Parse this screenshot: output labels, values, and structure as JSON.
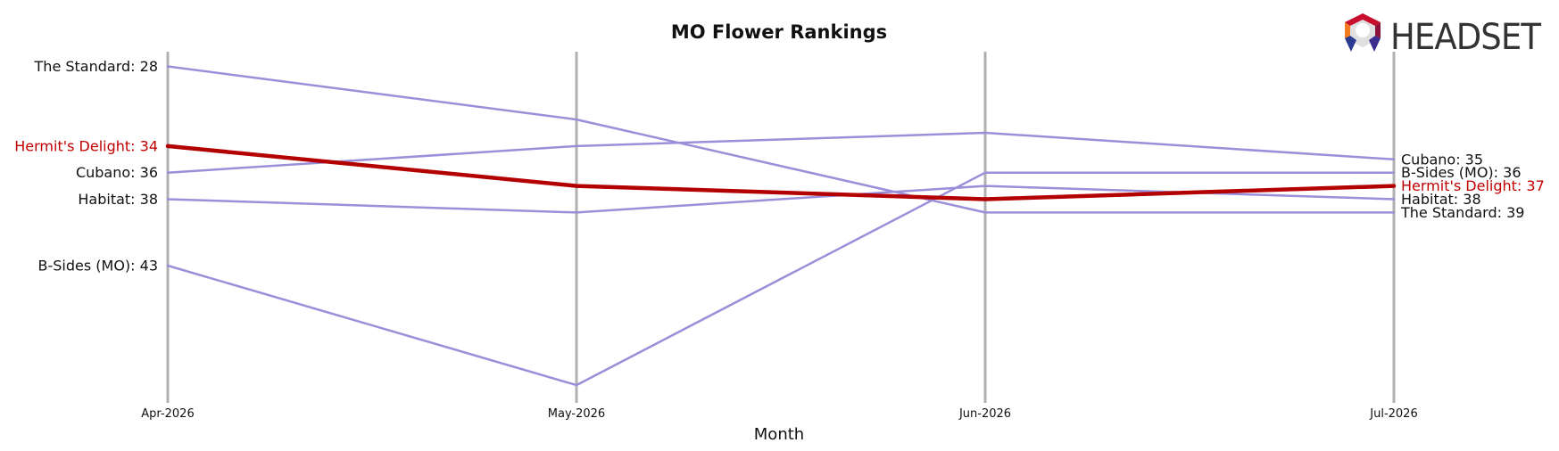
{
  "chart_data": {
    "type": "line",
    "title": "MO Flower Rankings",
    "xlabel": "Month",
    "ylabel": "",
    "categories": [
      "Apr-2026",
      "May-2026",
      "Jun-2026",
      "Jul-2026"
    ],
    "y_inverted": true,
    "ylim": [
      28,
      52
    ],
    "grid": false,
    "legend": "none",
    "series": [
      {
        "name": "The Standard",
        "values": [
          28,
          32,
          39,
          39
        ],
        "color": "#9b8fd9",
        "highlight": false,
        "left_label": "The Standard: 28",
        "right_label": "The Standard: 39"
      },
      {
        "name": "Hermit's Delight",
        "values": [
          34,
          37,
          38,
          37
        ],
        "color": "#b30000",
        "highlight": true,
        "left_label": "Hermit's Delight: 34",
        "right_label": "Hermit's Delight: 37"
      },
      {
        "name": "Cubano",
        "values": [
          36,
          34,
          33,
          35
        ],
        "color": "#9b8fd9",
        "highlight": false,
        "left_label": "Cubano: 36",
        "right_label": "Cubano: 35"
      },
      {
        "name": "Habitat",
        "values": [
          38,
          39,
          37,
          38
        ],
        "color": "#9b8fd9",
        "highlight": false,
        "left_label": "Habitat: 38",
        "right_label": "Habitat: 38"
      },
      {
        "name": "B-Sides (MO)",
        "values": [
          43,
          52,
          36,
          36
        ],
        "color": "#9b8fd9",
        "highlight": false,
        "left_label": "B-Sides (MO): 43",
        "right_label": "B-Sides (MO): 36"
      }
    ]
  },
  "logo": {
    "text": "HEADSET"
  },
  "colors": {
    "axis_line": "#b0b0b0",
    "label_dark": "#111111",
    "label_highlight": "#c00000"
  }
}
